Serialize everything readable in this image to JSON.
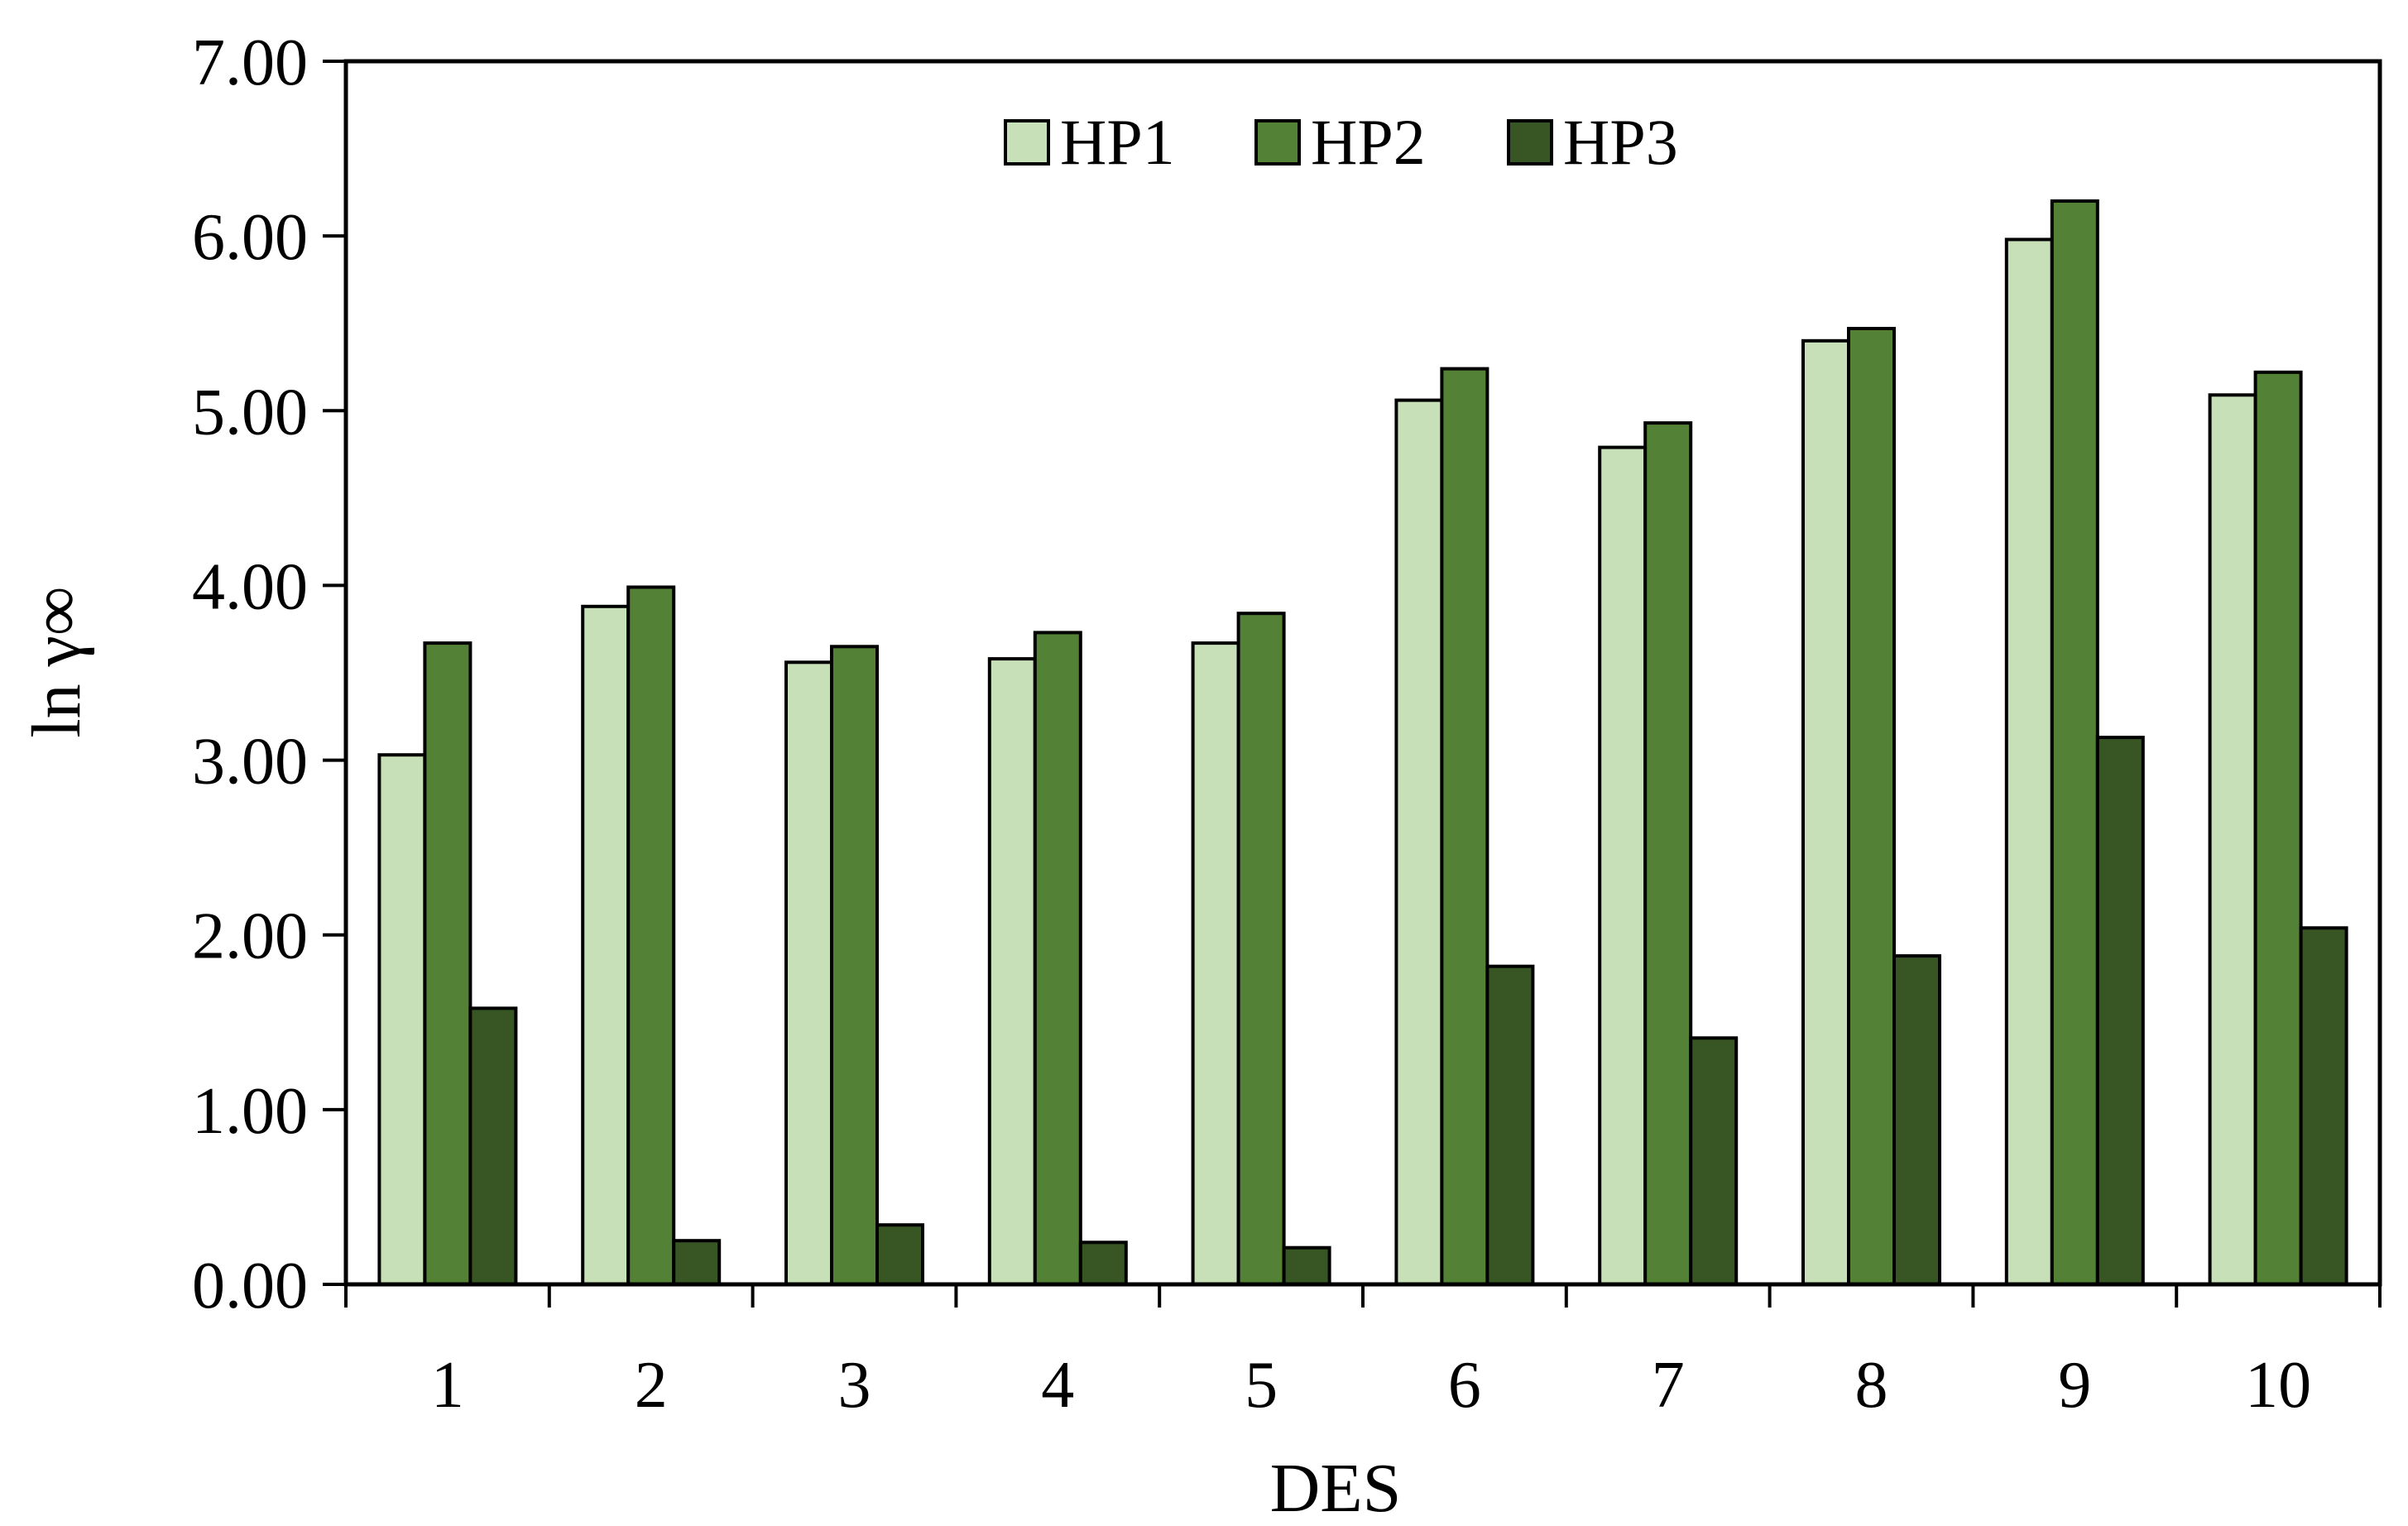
{
  "chart_data": {
    "type": "bar",
    "title": "",
    "xlabel": "DES",
    "ylabel": "ln γ∞",
    "categories": [
      "1",
      "2",
      "3",
      "4",
      "5",
      "6",
      "7",
      "8",
      "9",
      "10"
    ],
    "ylim": [
      0,
      7
    ],
    "yticks": [
      "0.00",
      "1.00",
      "2.00",
      "3.00",
      "4.00",
      "5.00",
      "6.00",
      "7.00"
    ],
    "grid": false,
    "legend_position": "top-center",
    "series": [
      {
        "name": "HP1",
        "color": "#c8e0b8",
        "values": [
          3.03,
          3.88,
          3.56,
          3.58,
          3.67,
          5.06,
          4.79,
          5.4,
          5.98,
          5.09
        ]
      },
      {
        "name": "HP2",
        "color": "#538135",
        "values": [
          3.67,
          3.99,
          3.65,
          3.73,
          3.84,
          5.24,
          4.93,
          5.47,
          6.2,
          5.22
        ]
      },
      {
        "name": "HP3",
        "color": "#375623",
        "values": [
          1.58,
          0.25,
          0.34,
          0.24,
          0.21,
          1.82,
          1.41,
          1.88,
          3.13,
          2.04
        ]
      }
    ]
  }
}
